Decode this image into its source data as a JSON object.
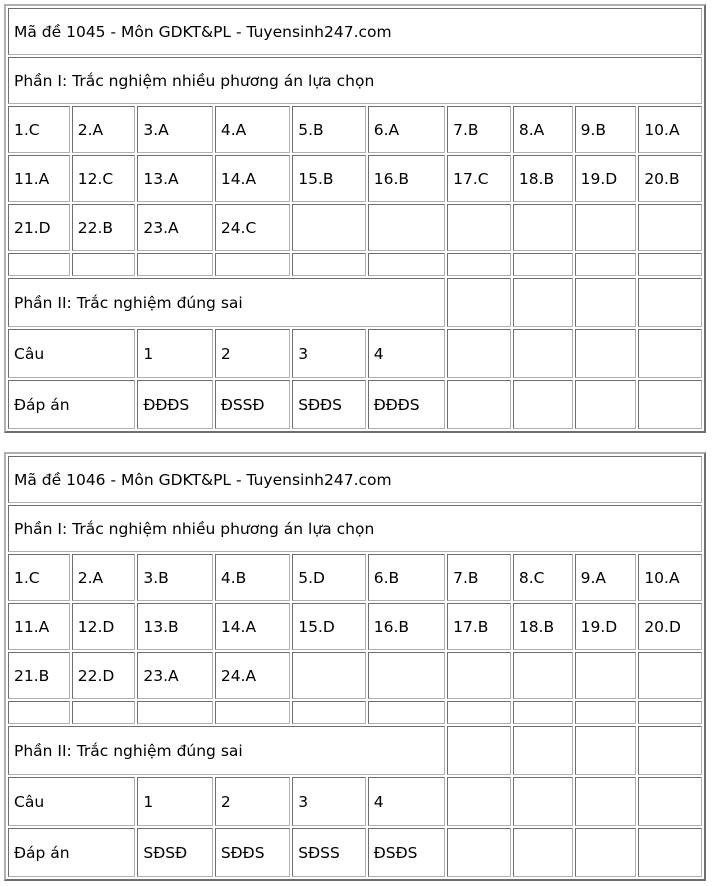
{
  "exams": [
    {
      "title": "Mã đề 1045 - Môn GDKT&PL - Tuyensinh247.com",
      "part1_label": "Phần I: Trắc nghiệm nhiều phương án lựa chọn",
      "part1_answers": [
        "1.C",
        "2.A",
        "3.A",
        "4.A",
        "5.B",
        "6.A",
        "7.B",
        "8.A",
        "9.B",
        "10.A",
        "11.A",
        "12.C",
        "13.A",
        "14.A",
        "15.B",
        "16.B",
        "17.C",
        "18.B",
        "19.D",
        "20.B",
        "21.D",
        "22.B",
        "23.A",
        "24.C"
      ],
      "part2_label": "Phần II: Trắc nghiệm đúng sai",
      "question_label": "Câu",
      "answer_label": "Đáp án",
      "part2_questions": [
        "1",
        "2",
        "3",
        "4"
      ],
      "part2_answers": [
        "ĐĐĐS",
        "ĐSSĐ",
        "SĐĐS",
        "ĐĐĐS"
      ]
    },
    {
      "title": "Mã đề 1046 - Môn GDKT&PL - Tuyensinh247.com",
      "part1_label": "Phần I: Trắc nghiệm nhiều phương án lựa chọn",
      "part1_answers": [
        "1.C",
        "2.A",
        "3.B",
        "4.B",
        "5.D",
        "6.B",
        "7.B",
        "8.C",
        "9.A",
        "10.A",
        "11.A",
        "12.D",
        "13.B",
        "14.A",
        "15.D",
        "16.B",
        "17.B",
        "18.B",
        "19.D",
        "20.D",
        "21.B",
        "22.D",
        "23.A",
        "24.A"
      ],
      "part2_label": "Phần II: Trắc nghiệm đúng sai",
      "question_label": "Câu",
      "answer_label": "Đáp án",
      "part2_questions": [
        "1",
        "2",
        "3",
        "4"
      ],
      "part2_answers": [
        "SĐSĐ",
        "SĐĐS",
        "SĐSS",
        "ĐSĐS"
      ]
    }
  ]
}
